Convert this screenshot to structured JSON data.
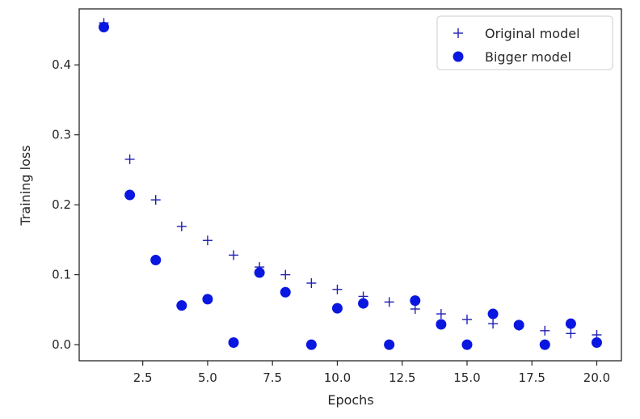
{
  "chart_data": {
    "type": "scatter",
    "title": "",
    "xlabel": "Epochs",
    "ylabel": "Training loss",
    "xlim": [
      0.05,
      20.95
    ],
    "ylim": [
      -0.023,
      0.48
    ],
    "xticks": [
      2.5,
      5.0,
      7.5,
      10.0,
      12.5,
      15.0,
      17.5,
      20.0
    ],
    "xtick_labels": [
      "2.5",
      "5.0",
      "7.5",
      "10.0",
      "12.5",
      "15.0",
      "17.5",
      "20.0"
    ],
    "yticks": [
      0.0,
      0.1,
      0.2,
      0.3,
      0.4
    ],
    "ytick_labels": [
      "0.0",
      "0.1",
      "0.2",
      "0.3",
      "0.4"
    ],
    "grid": false,
    "legend_position": "top-right",
    "series": [
      {
        "name": "Original model",
        "marker": "plus",
        "color": "#1f1fb4",
        "x": [
          1,
          2,
          3,
          4,
          5,
          6,
          7,
          8,
          9,
          10,
          11,
          12,
          13,
          14,
          15,
          16,
          17,
          18,
          19,
          20
        ],
        "y": [
          0.46,
          0.265,
          0.207,
          0.169,
          0.149,
          0.128,
          0.111,
          0.1,
          0.088,
          0.079,
          0.069,
          0.061,
          0.051,
          0.044,
          0.036,
          0.03,
          0.027,
          0.02,
          0.016,
          0.014
        ]
      },
      {
        "name": "Bigger model",
        "marker": "circle",
        "color": "#0a17e0",
        "x": [
          1,
          2,
          3,
          4,
          5,
          6,
          7,
          8,
          9,
          10,
          11,
          12,
          13,
          14,
          15,
          16,
          17,
          18,
          19,
          20
        ],
        "y": [
          0.454,
          0.214,
          0.121,
          0.056,
          0.065,
          0.003,
          0.103,
          0.075,
          0.0,
          0.052,
          0.059,
          0.0,
          0.063,
          0.029,
          0.0,
          0.044,
          0.028,
          0.0,
          0.03,
          0.003
        ]
      }
    ]
  }
}
